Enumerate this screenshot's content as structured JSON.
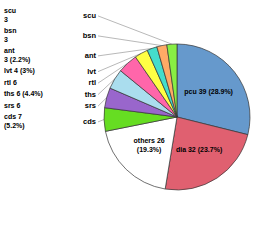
{
  "chart_data": {
    "type": "pie",
    "categories": [
      null,
      null,
      null,
      "cds",
      "srs",
      "ths",
      "rtl",
      "lvt",
      "ant",
      "bsn",
      "scu"
    ],
    "values": [
      39,
      32,
      26,
      7,
      6,
      6,
      6,
      4,
      3,
      3,
      3
    ],
    "value_labels": [
      "pcu 39 (28.9%)",
      "dia 32 (23.7%)",
      "others 26\n(19.3%)",
      "cds 7\n(5.2%)",
      "srs 6",
      "ths 6 (4.4%)",
      "rtl 6",
      "lvt 4 (3%)",
      "ant\n3 (2.2%)",
      "bsn\n3",
      "scu\n3"
    ],
    "colors": [
      "#6699CC",
      "#E06070",
      "#FFFFFF",
      "#66DD22",
      "#9966CC",
      "#AADDEE",
      "#FF66AA",
      "#FFFF44",
      "#44DDCC",
      "#FFAA66",
      "#88EE44"
    ],
    "data_labels": true
  }
}
